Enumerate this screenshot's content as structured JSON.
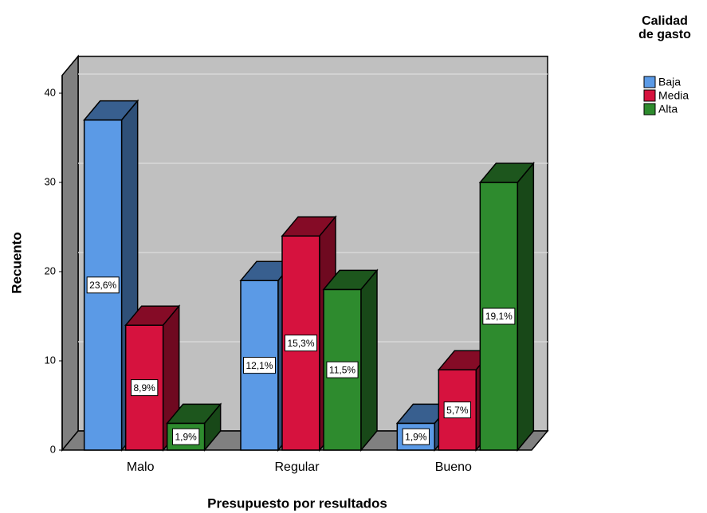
{
  "chart_data": {
    "type": "bar3d",
    "x_label": "Presupuesto por resultados",
    "y_label": "Recuento",
    "legend_title": "Calidad de gasto",
    "categories": [
      "Malo",
      "Regular",
      "Bueno"
    ],
    "series": [
      {
        "name": "Baja",
        "color": "#5b9ae6",
        "values": [
          37,
          19,
          3
        ],
        "value_labels": [
          "23,6%",
          "12,1%",
          "1,9%"
        ]
      },
      {
        "name": "Media",
        "color": "#d6123e",
        "values": [
          14,
          24,
          9
        ],
        "value_labels": [
          "8,9%",
          "15,3%",
          "5,7%"
        ]
      },
      {
        "name": "Alta",
        "color": "#2e8b2e",
        "values": [
          3,
          18,
          30
        ],
        "value_labels": [
          "1,9%",
          "11,5%",
          "19,1%"
        ]
      }
    ],
    "ylim": [
      0,
      42
    ],
    "yticks": [
      0,
      10,
      20,
      30,
      40
    ],
    "grid": true,
    "legend": "right"
  }
}
